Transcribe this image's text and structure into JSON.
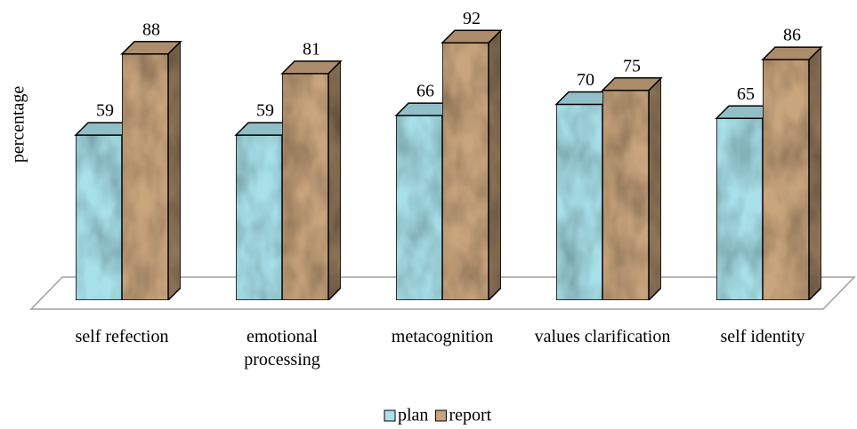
{
  "chart_data": {
    "type": "bar3d",
    "y_label": "percentage",
    "categories": [
      "self refection",
      "emotional processing",
      "metacognition",
      "values clarification",
      "self identity"
    ],
    "series": [
      {
        "name": "plan",
        "color": "#a9e1ea",
        "values": [
          59,
          59,
          66,
          70,
          65
        ]
      },
      {
        "name": "report",
        "color": "#c9a57e",
        "values": [
          88,
          81,
          92,
          75,
          86
        ]
      }
    ]
  }
}
